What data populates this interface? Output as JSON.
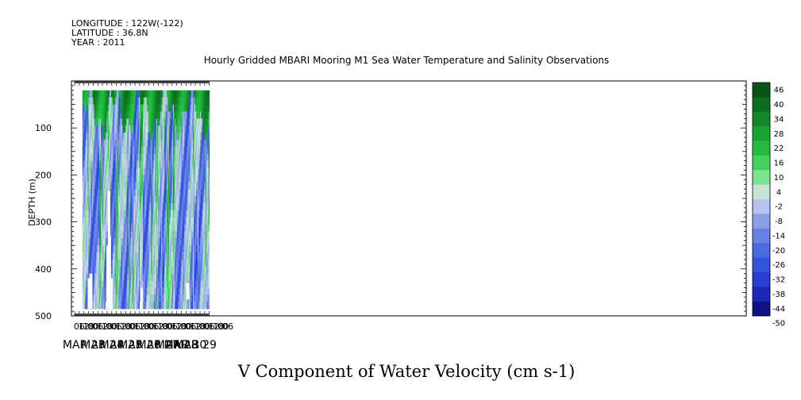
{
  "meta": {
    "longitude": "LONGITUDE : 122W(-122)",
    "latitude": "LATITUDE : 36.8N",
    "year": "YEAR : 2011"
  },
  "chart_data": {
    "type": "heatmap",
    "title": "Hourly Gridded MBARI Mooring M1 Sea Water Temperature and Salinity Observations",
    "subtitle": "V Component of Water Velocity (cm s-1)",
    "xlabel": "",
    "ylabel": "DEPTH (m)",
    "ylim": [
      500,
      0
    ],
    "y_ticks": [
      100,
      200,
      300,
      400,
      500
    ],
    "x_hour_ticks": [
      "06",
      "12",
      "18",
      "00",
      "06",
      "12",
      "18",
      "00",
      "06",
      "12",
      "18",
      "00",
      "06",
      "12",
      "18",
      "00",
      "06",
      "12",
      "18",
      "00",
      "06",
      "12",
      "18",
      "00",
      "06",
      "12",
      "18",
      "00",
      "06",
      "12",
      "18",
      "00",
      "06"
    ],
    "x_date_labels": [
      "MAR 23",
      "MAR 24",
      "MAR 25",
      "MAR 26",
      "MAR 27",
      "MAR 28",
      "MAR 29",
      "MAR 30"
    ],
    "colorbar": {
      "levels": [
        46,
        40,
        34,
        28,
        22,
        16,
        10,
        4,
        -2,
        -8,
        -14,
        -20,
        -26,
        -32,
        -38,
        -44,
        -50
      ],
      "min": -50,
      "max": 46
    },
    "data_start": "MAR 23 10:00",
    "data_end": "MAR 30 06:00",
    "depth_range_m": [
      20,
      485
    ],
    "surface_layer": {
      "depth_m": [
        20,
        80
      ],
      "value_cm_s": 30
    },
    "interior_value_cm_s": -12
  }
}
